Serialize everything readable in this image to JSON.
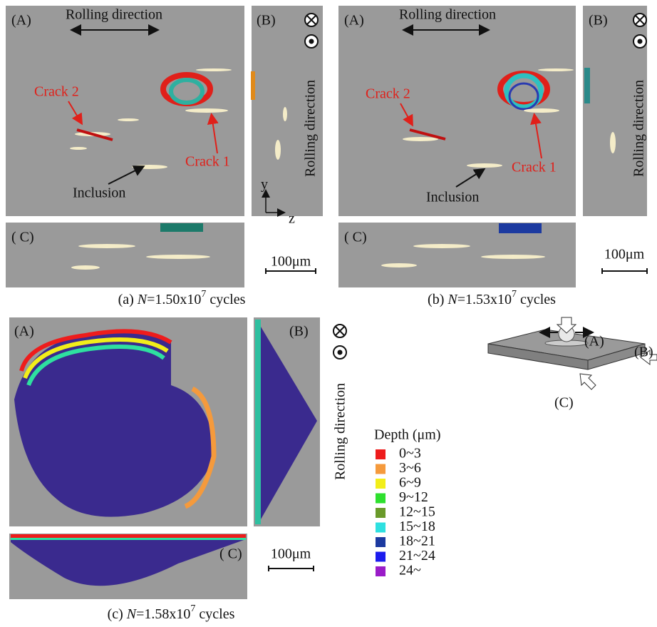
{
  "panels": [
    {
      "label_a": "(A)",
      "label_b": "(B)",
      "label_c": "( C)",
      "rolling_top": "Rolling direction",
      "rolling_side": "Rolling direction",
      "crack2": "Crack 2",
      "crack1": "Crack 1",
      "inclusion": "Inclusion",
      "axis_y": "y",
      "axis_z": "z",
      "scale_bar": "100μm",
      "caption": {
        "label": "(a)",
        "var": "N",
        "mantissa": "=1.50x10",
        "exponent": "7",
        "suffix": "cycles"
      }
    },
    {
      "label_a": "(A)",
      "label_b": "(B)",
      "label_c": "( C)",
      "rolling_top": "Rolling direction",
      "rolling_side": "Rolling direction",
      "crack2": "Crack 2",
      "crack1": "Crack 1",
      "inclusion": "Inclusion",
      "scale_bar": "100μm",
      "caption": {
        "label": "(b)",
        "var": "N",
        "mantissa": "=1.53x10",
        "exponent": "7",
        "suffix": "cycles"
      }
    },
    {
      "label_a": "(A)",
      "label_b": "(B)",
      "label_c": "( C)",
      "rolling_side": "Rolling direction",
      "scale_bar": "100μm",
      "caption": {
        "label": "(c)",
        "var": "N",
        "mantissa": "=1.58x10",
        "exponent": "7",
        "suffix": "cycles"
      }
    }
  ],
  "legend": {
    "title": "Depth (μm)",
    "items": [
      {
        "label": "0~3",
        "color": "#ee1c1c"
      },
      {
        "label": "3~6",
        "color": "#f59a3c"
      },
      {
        "label": "6~9",
        "color": "#f2ee1a"
      },
      {
        "label": "9~12",
        "color": "#2ee02e"
      },
      {
        "label": "12~15",
        "color": "#6a9a2a"
      },
      {
        "label": "15~18",
        "color": "#2ee0e0"
      },
      {
        "label": "18~21",
        "color": "#1c3aa0"
      },
      {
        "label": "21~24",
        "color": "#1c1cee"
      },
      {
        "label": "24~",
        "color": "#9a1cc8"
      }
    ]
  },
  "schematic": {
    "label_a": "(A)",
    "label_b": "(B)",
    "label_c": "(C)"
  }
}
